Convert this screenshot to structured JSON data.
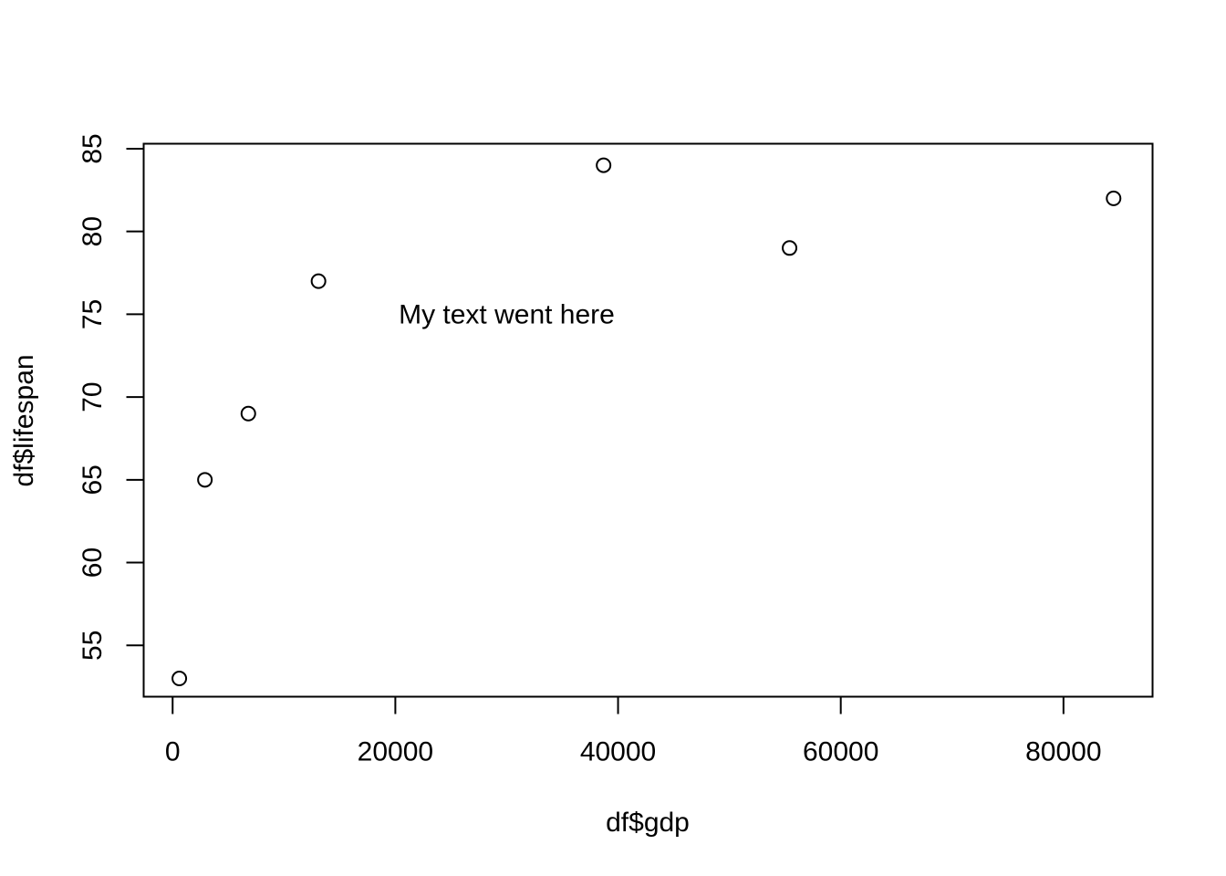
{
  "chart_data": {
    "type": "scatter",
    "xlabel": "df$gdp",
    "ylabel": "df$lifespan",
    "x": [
      600,
      2900,
      6800,
      13100,
      38700,
      55400,
      84500
    ],
    "y": [
      53,
      65,
      69,
      77,
      84,
      79,
      82
    ],
    "xlim": [
      -2600,
      88000
    ],
    "ylim": [
      51.9,
      85.3
    ],
    "xticks": [
      0,
      20000,
      40000,
      60000,
      80000
    ],
    "xtick_labels": [
      "0",
      "20000",
      "40000",
      "60000",
      "80000"
    ],
    "yticks": [
      55,
      60,
      65,
      70,
      75,
      80,
      85
    ],
    "ytick_labels": [
      "55",
      "60",
      "65",
      "70",
      "75",
      "80",
      "85"
    ],
    "annotations": [
      {
        "text": "My text went here",
        "x": 30000,
        "y": 75
      }
    ],
    "point_marker": "open-circle",
    "grid": false,
    "colors": {
      "foreground": "#000000",
      "background": "#ffffff"
    }
  }
}
